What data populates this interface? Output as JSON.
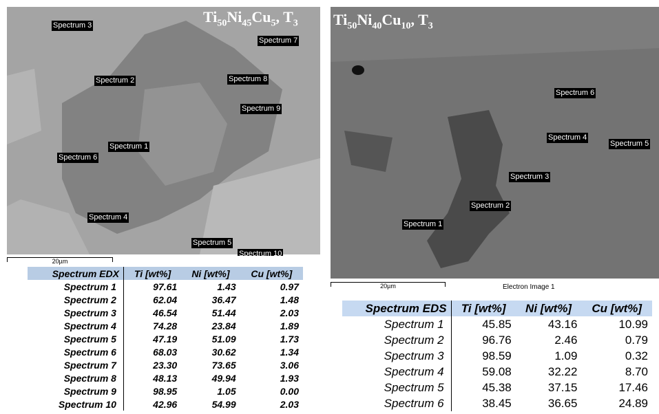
{
  "left": {
    "title_parts": [
      "Ti",
      "50",
      "Ni",
      "45",
      "Cu",
      "5",
      ", T",
      "3"
    ],
    "labels": [
      "Spectrum 3",
      "Spectrum 7",
      "Spectrum 2",
      "Spectrum 8",
      "Spectrum 9",
      "Spectrum 1",
      "Spectrum 6",
      "Spectrum 4",
      "Spectrum 5",
      "Spectrum 10"
    ],
    "scale": "20µm",
    "table": {
      "header": [
        "Spectrum EDX",
        "Ti [wt%]",
        "Ni [wt%]",
        "Cu [wt%]"
      ],
      "rows": [
        [
          "Spectrum 1",
          "97.61",
          "1.43",
          "0.97"
        ],
        [
          "Spectrum 2",
          "62.04",
          "36.47",
          "1.48"
        ],
        [
          "Spectrum 3",
          "46.54",
          "51.44",
          "2.03"
        ],
        [
          "Spectrum 4",
          "74.28",
          "23.84",
          "1.89"
        ],
        [
          "Spectrum 5",
          "47.19",
          "51.09",
          "1.73"
        ],
        [
          "Spectrum 6",
          "68.03",
          "30.62",
          "1.34"
        ],
        [
          "Spectrum 7",
          "23.30",
          "73.65",
          "3.06"
        ],
        [
          "Spectrum 8",
          "48.13",
          "49.94",
          "1.93"
        ],
        [
          "Spectrum 9",
          "98.95",
          "1.05",
          "0.00"
        ],
        [
          "Spectrum 10",
          "42.96",
          "54.99",
          "2.03"
        ]
      ]
    }
  },
  "right": {
    "title_parts": [
      "Ti",
      "50",
      "Ni",
      "40",
      "Cu",
      "10",
      ", T",
      "3"
    ],
    "labels": [
      "Spectrum 6",
      "Spectrum 4",
      "Spectrum 5",
      "Spectrum 3",
      "Spectrum 2",
      "Spectrum 1"
    ],
    "scale": "20µm",
    "caption": "Electron Image 1",
    "table": {
      "header": [
        "Spectrum EDS",
        "Ti [wt%]",
        "Ni [wt%]",
        "Cu [wt%]"
      ],
      "rows": [
        [
          "Spectrum 1",
          "45.85",
          "43.16",
          "10.99"
        ],
        [
          "Spectrum 2",
          "96.76",
          "2.46",
          "0.79"
        ],
        [
          "Spectrum 3",
          "98.59",
          "1.09",
          "0.32"
        ],
        [
          "Spectrum 4",
          "59.08",
          "32.22",
          "8.70"
        ],
        [
          "Spectrum 5",
          "45.38",
          "37.15",
          "17.46"
        ],
        [
          "Spectrum 6",
          "38.45",
          "36.65",
          "24.89"
        ]
      ]
    }
  }
}
